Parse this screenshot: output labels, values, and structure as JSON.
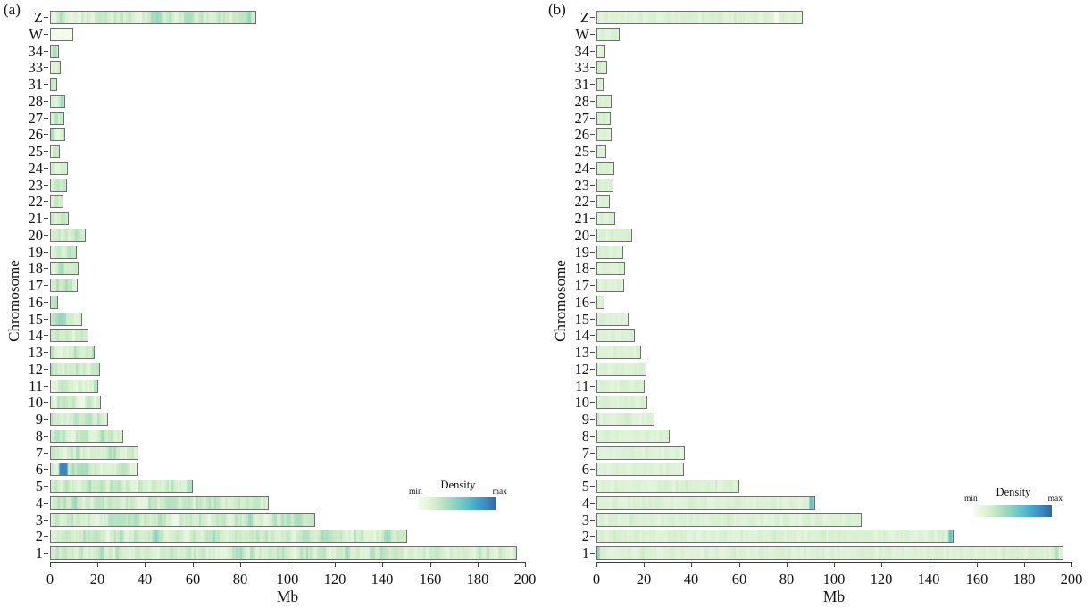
{
  "figure": {
    "background": "#ffffff"
  },
  "colors": {
    "colormap": [
      "#f7fcf0",
      "#e3f4dc",
      "#cdebc7",
      "#a9ddbf",
      "#86d0c4",
      "#5fbfca",
      "#42a6cd",
      "#3c87be",
      "#31669f"
    ],
    "bar_border": "#6f6f6f",
    "axis": "#3a3a3a",
    "text": "#111111"
  },
  "chart_data": [
    {
      "type": "heatmap",
      "panel_label": "(a)",
      "ylabel": "Chromosome",
      "xlabel": "Mb",
      "xlim": [
        0,
        200
      ],
      "x_ticks": [
        0,
        20,
        40,
        60,
        80,
        100,
        120,
        140,
        160,
        180,
        200
      ],
      "categories": [
        "Z",
        "W",
        "34",
        "33",
        "31",
        "28",
        "27",
        "26",
        "25",
        "24",
        "23",
        "22",
        "21",
        "20",
        "19",
        "18",
        "17",
        "16",
        "15",
        "14",
        "13",
        "12",
        "11",
        "10",
        "9",
        "8",
        "7",
        "6",
        "5",
        "4",
        "3",
        "2",
        "1"
      ],
      "lengths_mb": [
        86,
        9,
        3,
        3.8,
        2.2,
        5.5,
        5.4,
        5.5,
        3.5,
        6.8,
        6.4,
        4.8,
        7,
        14.2,
        10.5,
        11.4,
        10.9,
        2.5,
        12.8,
        15.4,
        18,
        20.2,
        19.6,
        20.7,
        23.6,
        30,
        36.5,
        36,
        59.5,
        91.3,
        110.8,
        149.5,
        196
      ],
      "legend": {
        "title": "Density",
        "min": "min",
        "max": "max"
      },
      "pattern": "variable density stripes along each chromosome (min ~ pale green, max ~ blue)",
      "low_density_chromosomes": [
        "W"
      ],
      "hotspots": [
        {
          "chromosome": "6",
          "start_mb": 4,
          "end_mb": 7,
          "level": 0.88
        }
      ]
    },
    {
      "type": "heatmap",
      "panel_label": "(b)",
      "ylabel": "Chromosome",
      "xlabel": "Mb",
      "xlim": [
        0,
        200
      ],
      "x_ticks": [
        0,
        20,
        40,
        60,
        80,
        100,
        120,
        140,
        160,
        180,
        200
      ],
      "categories": [
        "Z",
        "W",
        "34",
        "33",
        "31",
        "28",
        "27",
        "26",
        "25",
        "24",
        "23",
        "22",
        "21",
        "20",
        "19",
        "18",
        "17",
        "16",
        "15",
        "14",
        "13",
        "12",
        "11",
        "10",
        "9",
        "8",
        "7",
        "6",
        "5",
        "4",
        "3",
        "2",
        "1"
      ],
      "lengths_mb": [
        86,
        9,
        3,
        3.8,
        2.2,
        5.5,
        5.4,
        5.5,
        3.5,
        6.8,
        6.4,
        4.8,
        7,
        14.2,
        10.5,
        11.4,
        10.9,
        2.5,
        12.8,
        15.4,
        18,
        20.2,
        19.6,
        20.7,
        23.6,
        30,
        36.5,
        36,
        59.5,
        91.3,
        110.8,
        149.5,
        196
      ],
      "legend": {
        "title": "Density",
        "min": "min",
        "max": "max"
      },
      "pattern": "uniform low density pale-green bars",
      "low_density_chromosomes": [],
      "hotspots": [
        {
          "chromosome": "Z",
          "start_mb": 75,
          "end_mb": 76.5,
          "level": 0.02
        },
        {
          "chromosome": "4",
          "start_mb": 89.8,
          "end_mb": 91.3,
          "level": 0.6
        },
        {
          "chromosome": "2",
          "start_mb": 148.4,
          "end_mb": 149.5,
          "level": 0.6
        },
        {
          "chromosome": "1",
          "start_mb": 0,
          "end_mb": 0.8,
          "level": 0.5
        },
        {
          "chromosome": "1",
          "start_mb": 193.2,
          "end_mb": 194.2,
          "level": 0.35
        }
      ]
    }
  ]
}
